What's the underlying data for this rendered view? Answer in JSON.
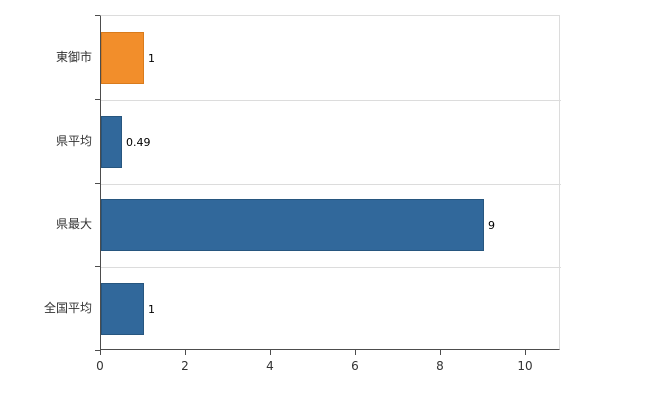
{
  "chart_data": {
    "type": "bar",
    "orientation": "horizontal",
    "title": "",
    "xlabel": "",
    "ylabel": "",
    "categories": [
      "東御市",
      "県平均",
      "県最大",
      "全国平均"
    ],
    "values": [
      1,
      0.49,
      9,
      1
    ],
    "value_labels": [
      "1",
      "0.49",
      "9",
      "1"
    ],
    "bar_colors": [
      "#f28e2b",
      "#31689b",
      "#31689b",
      "#31689b"
    ],
    "bar_border_colors": [
      "#d97b1c",
      "#27567f",
      "#27567f",
      "#27567f"
    ],
    "xlim": [
      0,
      10.8
    ],
    "xticks": [
      0,
      2,
      4,
      6,
      8,
      10
    ],
    "xtick_labels": [
      "0",
      "2",
      "4",
      "6",
      "8",
      "10"
    ],
    "legend": "none",
    "grid": "horizontal band separators"
  },
  "colors": {
    "axis": "#4d4d4d",
    "grid": "#dcdcdc",
    "text": "#333333",
    "background": "#ffffff"
  }
}
